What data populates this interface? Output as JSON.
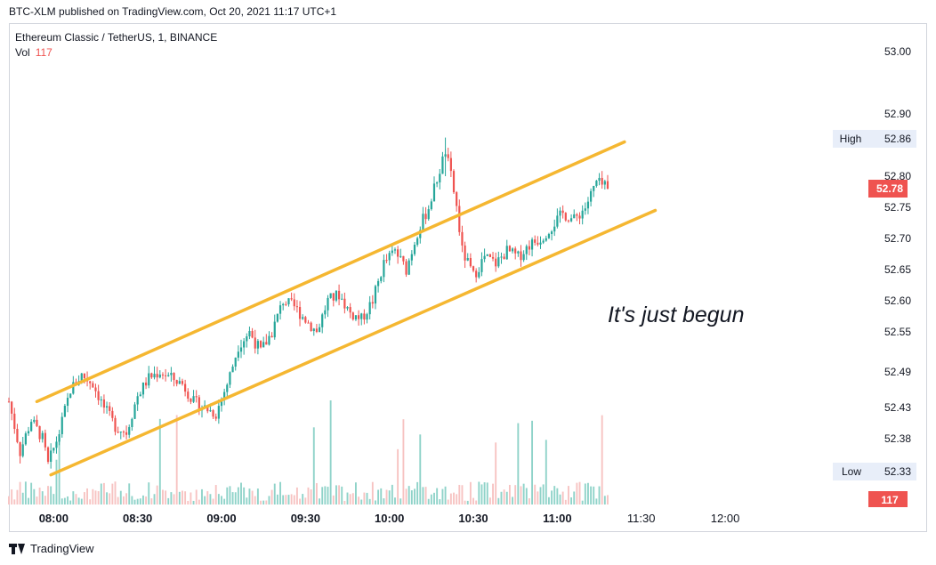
{
  "header": {
    "published": "BTC-XLM published on TradingView.com, Oct 20, 2021 11:17 UTC+1"
  },
  "legend": {
    "title": "Ethereum Classic / TetherUS, 1, BINANCE",
    "vol_label": "Vol",
    "vol_value": "117"
  },
  "footer": {
    "brand": "TradingView",
    "logo_icon": "tradingview-logo-icon"
  },
  "colors": {
    "up": "#26a69a",
    "down": "#ef5350",
    "channel": "#f5b731",
    "vol_up": "#8fd3c9",
    "vol_down": "#f7c3c2"
  },
  "chart_data": {
    "type": "candlestick",
    "y_ticks": [
      "53.00",
      "52.90",
      "52.80",
      "52.75",
      "52.70",
      "52.65",
      "52.60",
      "52.55",
      "52.49",
      "52.43",
      "52.38"
    ],
    "x_ticks": [
      "08:00",
      "08:30",
      "09:00",
      "09:30",
      "10:00",
      "10:30",
      "11:00",
      "11:30",
      "12:00"
    ],
    "x_tick_minutes": [
      480,
      510,
      540,
      570,
      600,
      630,
      660,
      690,
      720
    ],
    "x_range_minutes": [
      464,
      768
    ],
    "high": {
      "label": "High",
      "value": "52.86"
    },
    "low": {
      "label": "Low",
      "value": "52.33"
    },
    "last_price": "52.78",
    "last_volume": "117",
    "annotation": "It's just begun",
    "channel": {
      "upper": [
        [
          474,
          52.44
        ],
        [
          684,
          52.855
        ]
      ],
      "lower": [
        [
          479,
          52.325
        ],
        [
          695,
          52.745
        ]
      ]
    },
    "anchors": [
      [
        464,
        52.44
      ],
      [
        466,
        52.4
      ],
      [
        468,
        52.36
      ],
      [
        472,
        52.41
      ],
      [
        476,
        52.38
      ],
      [
        478,
        52.34
      ],
      [
        482,
        52.39
      ],
      [
        486,
        52.46
      ],
      [
        490,
        52.485
      ],
      [
        494,
        52.47
      ],
      [
        498,
        52.43
      ],
      [
        502,
        52.4
      ],
      [
        506,
        52.39
      ],
      [
        510,
        52.45
      ],
      [
        514,
        52.48
      ],
      [
        518,
        52.49
      ],
      [
        522,
        52.48
      ],
      [
        526,
        52.47
      ],
      [
        530,
        52.44
      ],
      [
        534,
        52.43
      ],
      [
        538,
        52.42
      ],
      [
        542,
        52.47
      ],
      [
        546,
        52.53
      ],
      [
        550,
        52.55
      ],
      [
        554,
        52.52
      ],
      [
        558,
        52.55
      ],
      [
        562,
        52.6
      ],
      [
        566,
        52.59
      ],
      [
        570,
        52.57
      ],
      [
        574,
        52.55
      ],
      [
        578,
        52.6
      ],
      [
        582,
        52.61
      ],
      [
        586,
        52.58
      ],
      [
        590,
        52.57
      ],
      [
        594,
        52.6
      ],
      [
        598,
        52.66
      ],
      [
        602,
        52.68
      ],
      [
        606,
        52.65
      ],
      [
        610,
        52.71
      ],
      [
        614,
        52.75
      ],
      [
        618,
        52.81
      ],
      [
        620,
        52.84
      ],
      [
        622,
        52.8
      ],
      [
        624,
        52.75
      ],
      [
        626,
        52.68
      ],
      [
        630,
        52.64
      ],
      [
        634,
        52.67
      ],
      [
        638,
        52.66
      ],
      [
        642,
        52.68
      ],
      [
        646,
        52.67
      ],
      [
        650,
        52.69
      ],
      [
        654,
        52.7
      ],
      [
        658,
        52.72
      ],
      [
        662,
        52.74
      ],
      [
        666,
        52.73
      ],
      [
        670,
        52.75
      ],
      [
        674,
        52.79
      ],
      [
        678,
        52.78
      ]
    ]
  }
}
